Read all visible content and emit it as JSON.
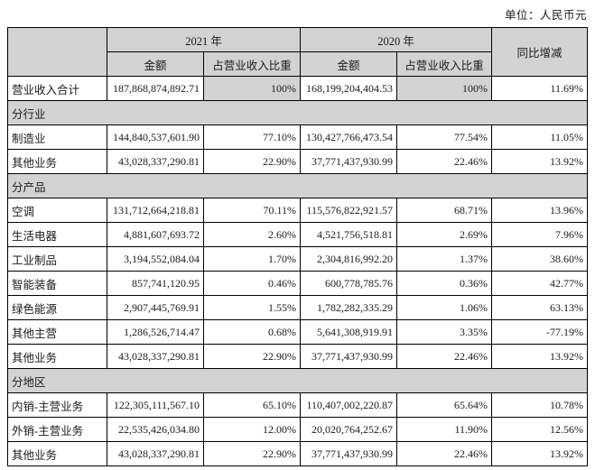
{
  "page": {
    "unit_label": "单位：人民币元"
  },
  "colors": {
    "header_bg": "#d3d3d3",
    "border": "#000000",
    "page_bg": "#ffffff"
  },
  "table": {
    "header": {
      "corner": "",
      "year_2021": "2021 年",
      "year_2020": "2020 年",
      "yoy": "同比增减",
      "amount_2021": "金额",
      "proportion_2021": "占营业收入比重",
      "amount_2020": "金额",
      "proportion_2020": "占营业收入比重"
    },
    "rows": [
      {
        "type": "data",
        "label": "营业收入合计",
        "a2021": "187,868,874,892.71",
        "p2021": "100%",
        "a2020": "168,199,204,404.53",
        "p2020": "100%",
        "yoy": "11.69%",
        "pct_shaded": true
      },
      {
        "type": "section",
        "label": "分行业"
      },
      {
        "type": "data",
        "label": "制造业",
        "a2021": "144,840,537,601.90",
        "p2021": "77.10%",
        "a2020": "130,427,766,473.54",
        "p2020": "77.54%",
        "yoy": "11.05%"
      },
      {
        "type": "data",
        "label": "其他业务",
        "a2021": "43,028,337,290.81",
        "p2021": "22.90%",
        "a2020": "37,771,437,930.99",
        "p2020": "22.46%",
        "yoy": "13.92%"
      },
      {
        "type": "section",
        "label": "分产品"
      },
      {
        "type": "data",
        "label": "空调",
        "a2021": "131,712,664,218.81",
        "p2021": "70.11%",
        "a2020": "115,576,822,921.57",
        "p2020": "68.71%",
        "yoy": "13.96%"
      },
      {
        "type": "data",
        "label": "生活电器",
        "a2021": "4,881,607,693.72",
        "p2021": "2.60%",
        "a2020": "4,521,756,518.81",
        "p2020": "2.69%",
        "yoy": "7.96%"
      },
      {
        "type": "data",
        "label": "工业制品",
        "a2021": "3,194,552,084.04",
        "p2021": "1.70%",
        "a2020": "2,304,816,992.20",
        "p2020": "1.37%",
        "yoy": "38.60%"
      },
      {
        "type": "data",
        "label": "智能装备",
        "a2021": "857,741,120.95",
        "p2021": "0.46%",
        "a2020": "600,778,785.76",
        "p2020": "0.36%",
        "yoy": "42.77%"
      },
      {
        "type": "data",
        "label": "绿色能源",
        "a2021": "2,907,445,769.91",
        "p2021": "1.55%",
        "a2020": "1,782,282,335.29",
        "p2020": "1.06%",
        "yoy": "63.13%"
      },
      {
        "type": "data",
        "label": "其他主营",
        "a2021": "1,286,526,714.47",
        "p2021": "0.68%",
        "a2020": "5,641,308,919.91",
        "p2020": "3.35%",
        "yoy": "-77.19%"
      },
      {
        "type": "data",
        "label": "其他业务",
        "a2021": "43,028,337,290.81",
        "p2021": "22.90%",
        "a2020": "37,771,437,930.99",
        "p2020": "22.46%",
        "yoy": "13.92%"
      },
      {
        "type": "section",
        "label": "分地区"
      },
      {
        "type": "data",
        "label": "内销-主营业务",
        "a2021": "122,305,111,567.10",
        "p2021": "65.10%",
        "a2020": "110,407,002,220.87",
        "p2020": "65.64%",
        "yoy": "10.78%"
      },
      {
        "type": "data",
        "label": "外销-主营业务",
        "a2021": "22,535,426,034.80",
        "p2021": "12.00%",
        "a2020": "20,020,764,252.67",
        "p2020": "11.90%",
        "yoy": "12.56%"
      },
      {
        "type": "data",
        "label": "其他业务",
        "a2021": "43,028,337,290.81",
        "p2021": "22.90%",
        "a2020": "37,771,437,930.99",
        "p2020": "22.46%",
        "yoy": "13.92%"
      }
    ]
  }
}
